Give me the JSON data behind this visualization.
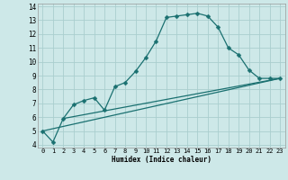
{
  "xlabel": "Humidex (Indice chaleur)",
  "bg_color": "#cde8e8",
  "grid_color": "#aacece",
  "line_color": "#1a7070",
  "xlim": [
    -0.5,
    23.5
  ],
  "ylim": [
    3.8,
    14.2
  ],
  "xticks": [
    0,
    1,
    2,
    3,
    4,
    5,
    6,
    7,
    8,
    9,
    10,
    11,
    12,
    13,
    14,
    15,
    16,
    17,
    18,
    19,
    20,
    21,
    22,
    23
  ],
  "yticks": [
    4,
    5,
    6,
    7,
    8,
    9,
    10,
    11,
    12,
    13,
    14
  ],
  "line1_x": [
    0,
    1,
    2,
    3,
    4,
    5,
    6,
    7,
    8,
    9,
    10,
    11,
    12,
    13,
    14,
    15,
    16,
    17,
    18,
    19,
    20,
    21,
    22,
    23
  ],
  "line1_y": [
    5.0,
    4.2,
    5.9,
    6.9,
    7.2,
    7.4,
    6.5,
    8.2,
    8.5,
    9.3,
    10.3,
    11.5,
    13.2,
    13.3,
    13.4,
    13.5,
    13.3,
    12.5,
    11.0,
    10.5,
    9.4,
    8.8,
    8.8,
    8.8
  ],
  "line2_x": [
    0,
    23
  ],
  "line2_y": [
    5.0,
    8.8
  ],
  "line3_x": [
    2,
    23
  ],
  "line3_y": [
    5.9,
    8.8
  ],
  "marker_size": 2.5,
  "xlabel_fontsize": 5.5,
  "tick_fontsize": 5.0
}
